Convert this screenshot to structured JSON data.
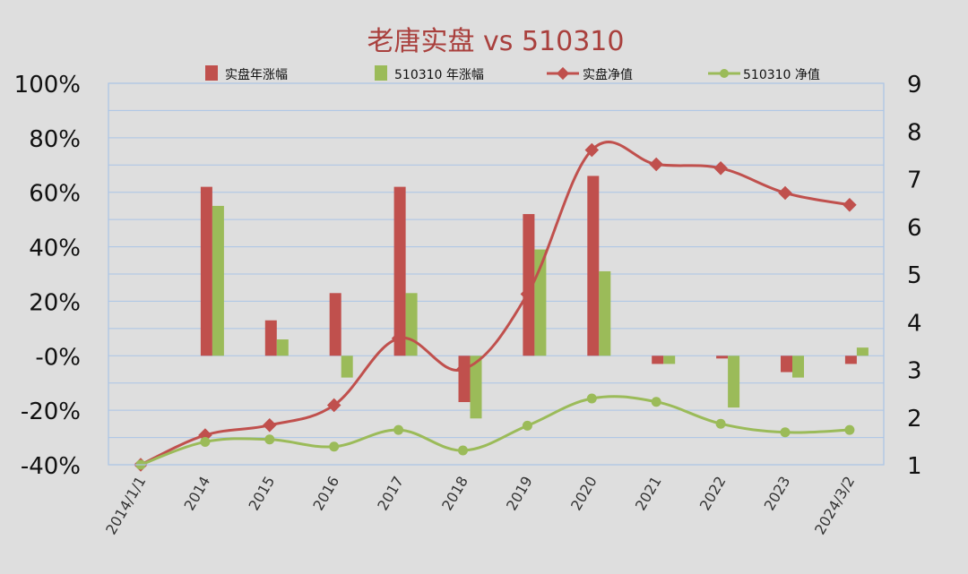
{
  "chart_data": {
    "type": "bar",
    "title": "老唐实盘 vs 510310",
    "categories": [
      "2014/1/1",
      "2014",
      "2015",
      "2016",
      "2017",
      "2018",
      "2019",
      "2020",
      "2021",
      "2022",
      "2023",
      "2024/3/2"
    ],
    "series": [
      {
        "name": "实盘年涨幅",
        "kind": "bar",
        "axis": "left",
        "color": "#c0504d",
        "values": [
          null,
          62,
          13,
          23,
          62,
          -17,
          52,
          66,
          -3,
          -1,
          -6,
          -3
        ]
      },
      {
        "name": "510310 年涨幅",
        "kind": "bar",
        "axis": "left",
        "color": "#9bbb59",
        "values": [
          null,
          55,
          6,
          -8,
          23,
          -23,
          39,
          31,
          -3,
          -19,
          -8,
          3
        ]
      },
      {
        "name": "实盘净值",
        "kind": "line",
        "marker": "diamond",
        "axis": "right",
        "color": "#c0504d",
        "values": [
          1.0,
          1.62,
          1.83,
          2.25,
          3.65,
          3.0,
          4.58,
          7.6,
          7.3,
          7.22,
          6.7,
          6.45
        ]
      },
      {
        "name": "510310 净值",
        "kind": "line",
        "marker": "circle",
        "axis": "right",
        "color": "#9bbb59",
        "values": [
          1.0,
          1.48,
          1.53,
          1.38,
          1.73,
          1.3,
          1.82,
          2.39,
          2.32,
          1.86,
          1.68,
          1.73
        ]
      }
    ],
    "left_axis": {
      "min": -40,
      "max": 100,
      "step": 20,
      "tick_labels": [
        "-40%",
        "-20%",
        "-0%",
        "20%",
        "40%",
        "60%",
        "80%",
        "100%"
      ]
    },
    "right_axis": {
      "min": 1,
      "max": 9,
      "step": 1,
      "tick_labels": [
        "1",
        "2",
        "3",
        "4",
        "5",
        "6",
        "7",
        "8",
        "9"
      ]
    },
    "legend_position": "top",
    "grid": true,
    "colors": {
      "red": "#c0504d",
      "green": "#9bbb59",
      "title": "#a9403d",
      "grid": "#aac4e6",
      "background": "#dedede"
    }
  }
}
